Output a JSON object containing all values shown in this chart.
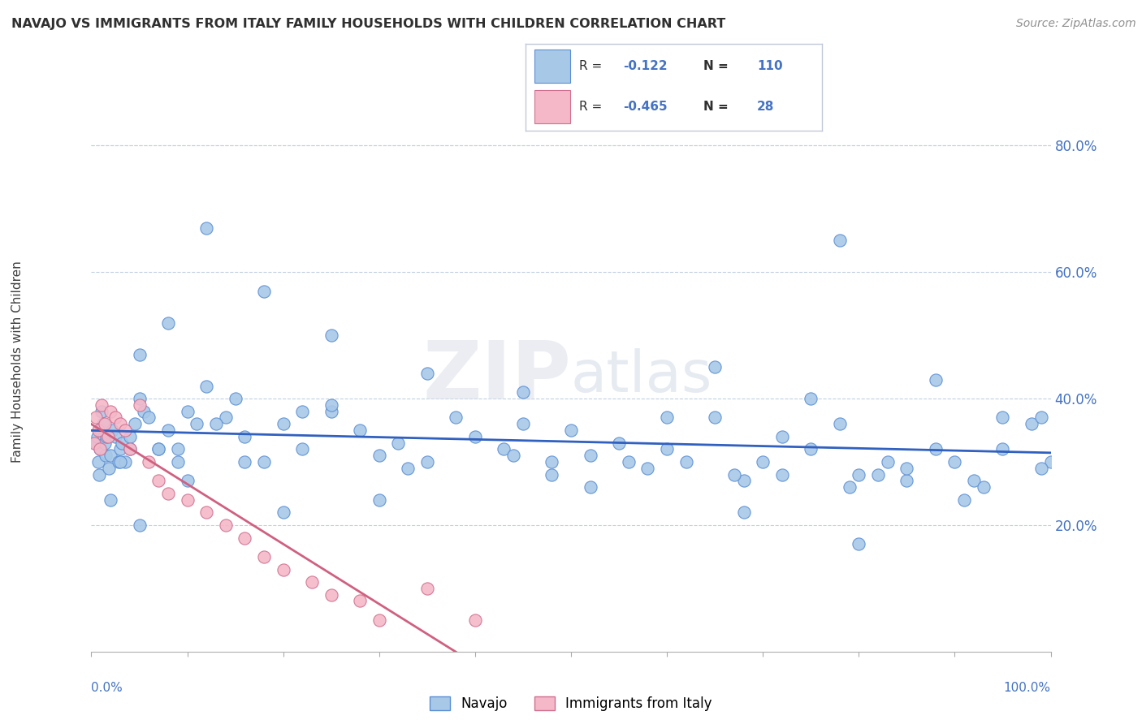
{
  "title": "NAVAJO VS IMMIGRANTS FROM ITALY FAMILY HOUSEHOLDS WITH CHILDREN CORRELATION CHART",
  "source": "Source: ZipAtlas.com",
  "ylabel": "Family Households with Children",
  "watermark_zip": "ZIP",
  "watermark_atlas": "atlas",
  "navajo_color": "#a8c8e8",
  "navajo_edge_color": "#5b8fd4",
  "italy_color": "#f4b8c8",
  "italy_edge_color": "#d07090",
  "navajo_line_color": "#3060c0",
  "italy_line_color": "#d06080",
  "axis_color": "#4472c4",
  "title_color": "#303030",
  "source_color": "#909090",
  "grid_color": "#c0cfe0",
  "background_color": "#ffffff",
  "ylim": [
    0,
    87
  ],
  "xlim": [
    0,
    100
  ],
  "yticks": [
    20,
    40,
    60,
    80
  ],
  "ytick_labels": [
    "20.0%",
    "40.0%",
    "60.0%",
    "80.0%"
  ],
  "navajo_x": [
    0.5,
    0.6,
    0.7,
    0.8,
    0.9,
    1.0,
    1.1,
    1.2,
    1.3,
    1.4,
    1.5,
    1.6,
    1.8,
    2.0,
    2.2,
    2.5,
    2.8,
    3.0,
    3.2,
    3.5,
    4.0,
    4.5,
    5.0,
    5.5,
    6.0,
    7.0,
    8.0,
    9.0,
    10.0,
    11.0,
    12.0,
    14.0,
    16.0,
    18.0,
    20.0,
    22.0,
    25.0,
    28.0,
    30.0,
    32.0,
    35.0,
    38.0,
    40.0,
    43.0,
    45.0,
    48.0,
    50.0,
    52.0,
    55.0,
    58.0,
    60.0,
    62.0,
    65.0,
    68.0,
    70.0,
    72.0,
    75.0,
    78.0,
    80.0,
    83.0,
    85.0,
    88.0,
    90.0,
    92.0,
    95.0,
    98.0,
    99.0,
    5.0,
    8.0,
    12.0,
    18.0,
    25.0,
    35.0,
    65.0,
    78.0,
    88.0,
    95.0,
    2.0,
    5.0,
    10.0,
    20.0,
    30.0,
    68.0,
    80.0,
    15.0,
    25.0,
    45.0,
    60.0,
    75.0,
    85.0,
    3.0,
    7.0,
    13.0,
    22.0,
    33.0,
    44.0,
    56.0,
    67.0,
    79.0,
    91.0,
    100.0,
    48.0,
    52.0,
    72.0,
    82.0,
    93.0,
    99.0,
    4.0,
    9.0,
    16.0
  ],
  "navajo_y": [
    33.0,
    34.0,
    30.0,
    28.0,
    32.0,
    35.0,
    38.0,
    36.0,
    34.0,
    33.0,
    31.0,
    34.0,
    29.0,
    31.0,
    35.0,
    34.0,
    30.0,
    32.0,
    33.0,
    30.0,
    32.0,
    36.0,
    40.0,
    38.0,
    37.0,
    32.0,
    35.0,
    30.0,
    38.0,
    36.0,
    42.0,
    37.0,
    34.0,
    30.0,
    36.0,
    32.0,
    38.0,
    35.0,
    31.0,
    33.0,
    30.0,
    37.0,
    34.0,
    32.0,
    36.0,
    30.0,
    35.0,
    31.0,
    33.0,
    29.0,
    32.0,
    30.0,
    37.0,
    27.0,
    30.0,
    34.0,
    32.0,
    36.0,
    28.0,
    30.0,
    27.0,
    32.0,
    30.0,
    27.0,
    32.0,
    36.0,
    37.0,
    47.0,
    52.0,
    67.0,
    57.0,
    50.0,
    44.0,
    45.0,
    65.0,
    43.0,
    37.0,
    24.0,
    20.0,
    27.0,
    22.0,
    24.0,
    22.0,
    17.0,
    40.0,
    39.0,
    41.0,
    37.0,
    40.0,
    29.0,
    30.0,
    32.0,
    36.0,
    38.0,
    29.0,
    31.0,
    30.0,
    28.0,
    26.0,
    24.0,
    30.0,
    28.0,
    26.0,
    28.0,
    28.0,
    26.0,
    29.0,
    34.0,
    32.0,
    30.0
  ],
  "italy_x": [
    0.3,
    0.5,
    0.7,
    0.9,
    1.1,
    1.4,
    1.7,
    2.0,
    2.5,
    3.0,
    3.5,
    4.0,
    5.0,
    6.0,
    7.0,
    8.0,
    10.0,
    12.0,
    14.0,
    16.0,
    18.0,
    20.0,
    23.0,
    25.0,
    28.0,
    30.0,
    35.0,
    40.0
  ],
  "italy_y": [
    33.0,
    37.0,
    35.0,
    32.0,
    39.0,
    36.0,
    34.0,
    38.0,
    37.0,
    36.0,
    35.0,
    32.0,
    39.0,
    30.0,
    27.0,
    25.0,
    24.0,
    22.0,
    20.0,
    18.0,
    15.0,
    13.0,
    11.0,
    9.0,
    8.0,
    5.0,
    10.0,
    5.0
  ]
}
